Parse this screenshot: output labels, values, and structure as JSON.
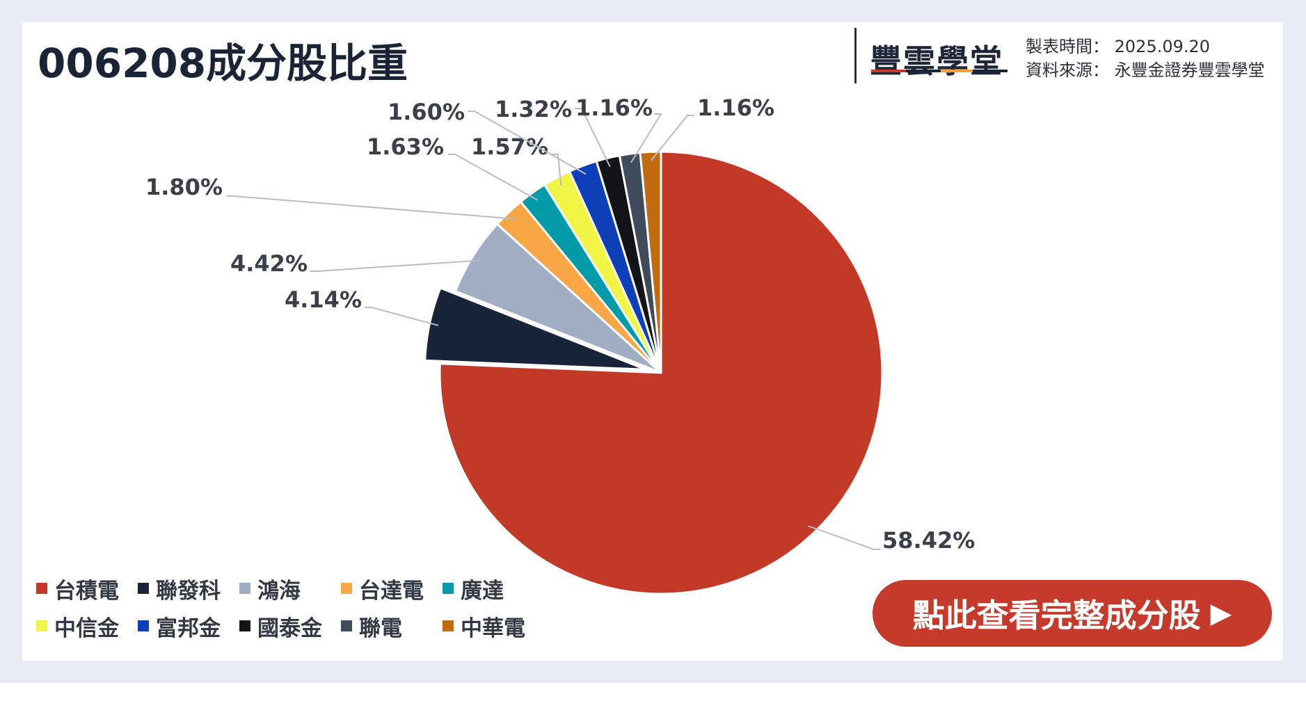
{
  "title": "006208成分股比重",
  "brand": {
    "name": "豐雲學堂",
    "colors": [
      "#c63a2c",
      "#1b2436",
      "#f2a13c",
      "#1b2436"
    ]
  },
  "meta": {
    "time_label": "製表時間",
    "time_value": "2025.09.20",
    "source_label": "資料來源",
    "source_value": "永豐金證券豐雲學堂"
  },
  "cta": {
    "label": "點此查看完整成分股",
    "icon": "play-triangle-icon"
  },
  "chart_data": {
    "type": "pie",
    "title": "006208成分股比重",
    "exploded": "聯發科",
    "slices": [
      {
        "name": "台積電",
        "value": 58.42,
        "label": "58.42%",
        "color": "#c23a27"
      },
      {
        "name": "聯發科",
        "value": 4.14,
        "label": "4.14%",
        "color": "#18243a"
      },
      {
        "name": "鴻海",
        "value": 4.42,
        "label": "4.42%",
        "color": "#a0aec4"
      },
      {
        "name": "台達電",
        "value": 1.8,
        "label": "1.80%",
        "color": "#f8a646"
      },
      {
        "name": "廣達",
        "value": 1.63,
        "label": "1.63%",
        "color": "#049ba8"
      },
      {
        "name": "中信金",
        "value": 1.57,
        "label": "1.57%",
        "color": "#f0f545"
      },
      {
        "name": "富邦金",
        "value": 1.6,
        "label": "1.60%",
        "color": "#0d3fb8"
      },
      {
        "name": "國泰金",
        "value": 1.32,
        "label": "1.32%",
        "color": "#121418"
      },
      {
        "name": "聯電",
        "value": 1.16,
        "label": "1.16%",
        "color": "#3e4c5c"
      },
      {
        "name": "中華電",
        "value": 1.16,
        "label": "1.16%",
        "color": "#c26b10"
      }
    ],
    "legend_position": "bottom-left"
  }
}
